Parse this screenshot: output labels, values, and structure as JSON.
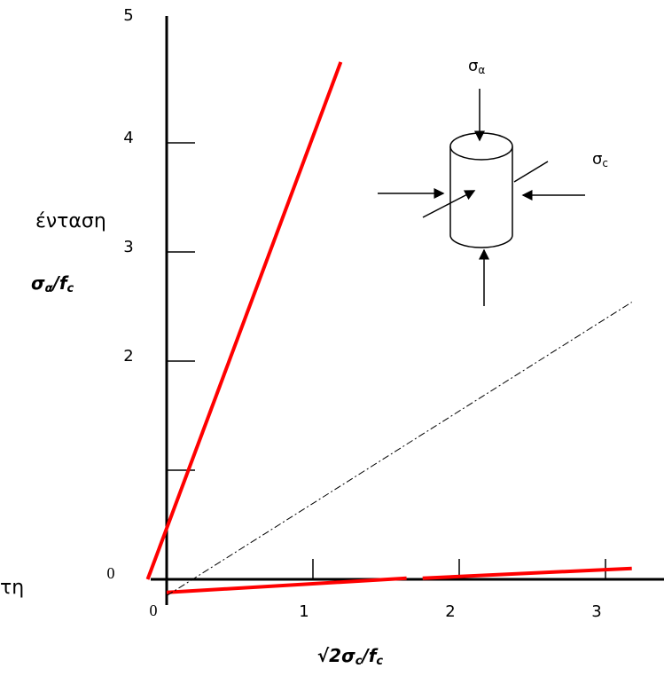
{
  "chart_data": {
    "type": "line",
    "xlabel": [
      "√2σ",
      "c",
      "/f",
      "c"
    ],
    "ylabel": [
      "σ",
      "α",
      "/f",
      "c"
    ],
    "annotations": {
      "top_load": [
        "σ",
        "α"
      ],
      "side_load": [
        "σ",
        "c"
      ],
      "cut_text_1": "ένταση",
      "cut_text_2": "τη"
    },
    "xlim": [
      -0.15,
      3.4
    ],
    "ylim": [
      -0.25,
      5.1
    ],
    "xticks": [
      0,
      1,
      2,
      3
    ],
    "yticks": [
      0,
      {
        "value": 1,
        "label": null
      },
      2,
      3,
      4,
      5
    ],
    "series": [
      {
        "color": "#ff0000",
        "style": "solid",
        "x": [
          -0.13,
          1.19
        ],
        "values": [
          0,
          4.74
        ]
      },
      {
        "color": "#ff0000",
        "style": "solid",
        "x": [
          0,
          1.64
        ],
        "values": [
          -0.12,
          0.01
        ]
      },
      {
        "color": "#ff0000",
        "style": "solid",
        "x": [
          1.75,
          3.18
        ],
        "values": [
          0.01,
          0.1
        ]
      },
      {
        "color": "#000000",
        "style": "dashdot",
        "x": [
          0,
          3.18
        ],
        "values": [
          -0.15,
          2.54
        ]
      }
    ]
  }
}
